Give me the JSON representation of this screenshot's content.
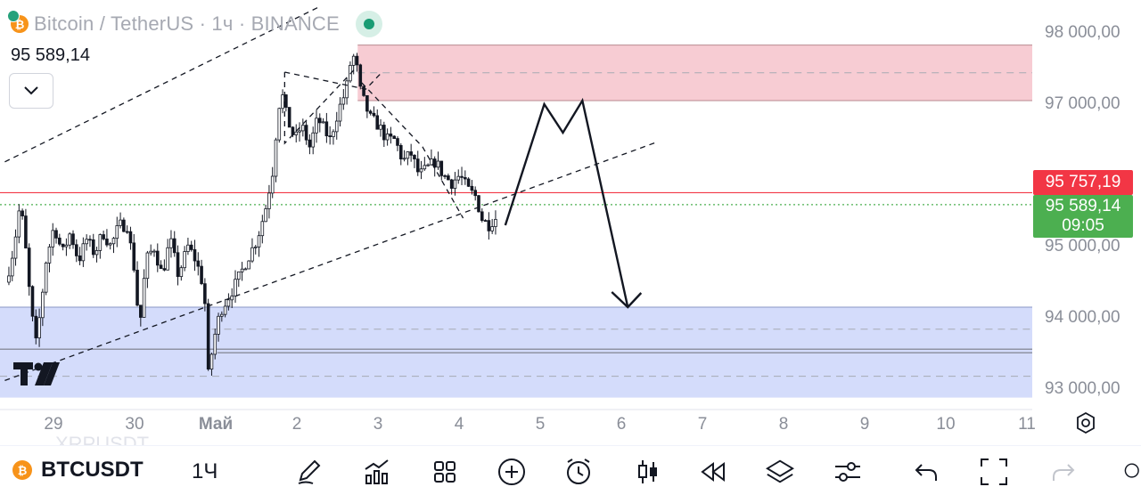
{
  "legend": {
    "title": "Bitcoin / TetherUS · 1ч · BINANCE",
    "last_price": "95 589,14"
  },
  "price_tags": {
    "last": "95 757,19",
    "current": "95 589,14",
    "countdown": "09:05"
  },
  "bottom_toolbar": {
    "symbol": "BTCUSDT",
    "interval": "1Ч",
    "ghost_symbol": "XRPUSDT"
  },
  "branding": {
    "logo_text": "TV"
  },
  "icons": [
    "bitcoin-coin-icon",
    "chevron-down-icon",
    "pencil-icon",
    "indicators-icon",
    "layouts-icon",
    "add-circle-icon",
    "alarm-icon",
    "candles-icon",
    "rewind-icon",
    "layers-icon",
    "settings-sliders-icon",
    "undo-icon",
    "fullscreen-icon",
    "redo-icon",
    "gear-icon"
  ],
  "colors": {
    "red_zone": "#f7ccd3",
    "blue_zone": "#d4dcfb",
    "last_price_tag": "#f23645",
    "current_price_tag": "#4caf50",
    "candles": "#131722"
  },
  "chart_data": {
    "type": "candlestick",
    "timeframe": "1h",
    "ylim": [
      92800,
      98300
    ],
    "y_ticks": [
      {
        "value": 98000,
        "label": "98 000,00"
      },
      {
        "value": 97000,
        "label": "97 000,00"
      },
      {
        "value": 95000,
        "label": "95 000,00"
      },
      {
        "value": 94000,
        "label": "94 000,00"
      },
      {
        "value": 93000,
        "label": "93 000,00"
      }
    ],
    "x_ticks": [
      {
        "t": -2,
        "label": "29"
      },
      {
        "t": -1,
        "label": "30"
      },
      {
        "t": 0,
        "label": "Май"
      },
      {
        "t": 1,
        "label": "2"
      },
      {
        "t": 2,
        "label": "3"
      },
      {
        "t": 3,
        "label": "4"
      },
      {
        "t": 4,
        "label": "5"
      },
      {
        "t": 5,
        "label": "6"
      },
      {
        "t": 6,
        "label": "7"
      },
      {
        "t": 7,
        "label": "8"
      },
      {
        "t": 8,
        "label": "9"
      },
      {
        "t": 9,
        "label": "10"
      },
      {
        "t": 10,
        "label": "11"
      }
    ],
    "price_path": [
      [
        -2.55,
        94500
      ],
      [
        -2.48,
        94800
      ],
      [
        -2.42,
        95200
      ],
      [
        -2.37,
        95600
      ],
      [
        -2.32,
        95200
      ],
      [
        -2.25,
        94300
      ],
      [
        -2.18,
        93600
      ],
      [
        -2.12,
        94100
      ],
      [
        -2.05,
        94800
      ],
      [
        -1.95,
        95300
      ],
      [
        -1.85,
        94900
      ],
      [
        -1.75,
        95200
      ],
      [
        -1.65,
        94800
      ],
      [
        -1.55,
        95100
      ],
      [
        -1.45,
        94900
      ],
      [
        -1.35,
        95200
      ],
      [
        -1.25,
        95000
      ],
      [
        -1.15,
        95300
      ],
      [
        -1.05,
        95300
      ],
      [
        -0.95,
        94600
      ],
      [
        -0.9,
        93800
      ],
      [
        -0.82,
        94800
      ],
      [
        -0.72,
        95000
      ],
      [
        -0.62,
        94600
      ],
      [
        -0.52,
        95100
      ],
      [
        -0.42,
        94600
      ],
      [
        -0.3,
        95000
      ],
      [
        -0.2,
        94800
      ],
      [
        -0.1,
        94400
      ],
      [
        -0.05,
        93200
      ],
      [
        0.02,
        93700
      ],
      [
        0.1,
        94100
      ],
      [
        0.2,
        94300
      ],
      [
        0.3,
        94500
      ],
      [
        0.42,
        94800
      ],
      [
        0.55,
        95100
      ],
      [
        0.65,
        95500
      ],
      [
        0.75,
        96100
      ],
      [
        0.8,
        96800
      ],
      [
        0.85,
        97200
      ],
      [
        0.92,
        96800
      ],
      [
        1.02,
        96500
      ],
      [
        1.1,
        96700
      ],
      [
        1.2,
        96400
      ],
      [
        1.3,
        96800
      ],
      [
        1.45,
        96500
      ],
      [
        1.55,
        96900
      ],
      [
        1.65,
        97200
      ],
      [
        1.72,
        97700
      ],
      [
        1.77,
        97600
      ],
      [
        1.82,
        97200
      ],
      [
        1.88,
        97000
      ],
      [
        1.95,
        96800
      ],
      [
        2.05,
        96700
      ],
      [
        2.15,
        96500
      ],
      [
        2.25,
        96500
      ],
      [
        2.35,
        96200
      ],
      [
        2.45,
        96300
      ],
      [
        2.55,
        96000
      ],
      [
        2.65,
        96100
      ],
      [
        2.75,
        96200
      ],
      [
        2.85,
        96000
      ],
      [
        2.95,
        95900
      ],
      [
        3.05,
        96000
      ],
      [
        3.15,
        95800
      ],
      [
        3.25,
        95700
      ],
      [
        3.32,
        95400
      ],
      [
        3.4,
        95300
      ],
      [
        3.48,
        95400
      ]
    ],
    "zones": [
      {
        "name": "supply",
        "from": 97050,
        "to": 97830,
        "mid": 97440,
        "x_start": 1.75,
        "color": "#f7ccd3"
      },
      {
        "name": "demand",
        "from": 92880,
        "to": 94150,
        "mid": 93840,
        "inner": 93180,
        "x_start": -0.05,
        "color": "#d4dcfb"
      }
    ],
    "horizontal_lines": [
      {
        "value": 95757.19,
        "color": "#f23645",
        "style": "solid"
      },
      {
        "value": 95589.14,
        "color": "#4caf50",
        "style": "dotted"
      },
      {
        "value": 93560,
        "color": "#787b86",
        "style": "solid"
      },
      {
        "value": 93510,
        "color": "#787b86",
        "style": "solid"
      }
    ],
    "channel_lines": [
      {
        "points": [
          [
            -2.6,
            96190
          ],
          [
            1.3,
            98380
          ]
        ]
      },
      {
        "points": [
          [
            -2.6,
            93120
          ],
          [
            5.42,
            96460
          ]
        ]
      }
    ],
    "pattern_lines": [
      [
        [
          0.85,
          97450
        ],
        [
          1.85,
          97210
        ],
        [
          2.05,
          97450
        ]
      ],
      [
        [
          0.85,
          97450
        ],
        [
          0.85,
          96450
        ],
        [
          1.72,
          97500
        ]
      ],
      [
        [
          1.8,
          97300
        ],
        [
          2.55,
          96400
        ],
        [
          3.05,
          95400
        ]
      ]
    ],
    "projection_path": [
      [
        3.57,
        95300
      ],
      [
        4.05,
        97000
      ],
      [
        4.28,
        96600
      ],
      [
        4.52,
        97050
      ],
      [
        5.08,
        94150
      ]
    ]
  }
}
